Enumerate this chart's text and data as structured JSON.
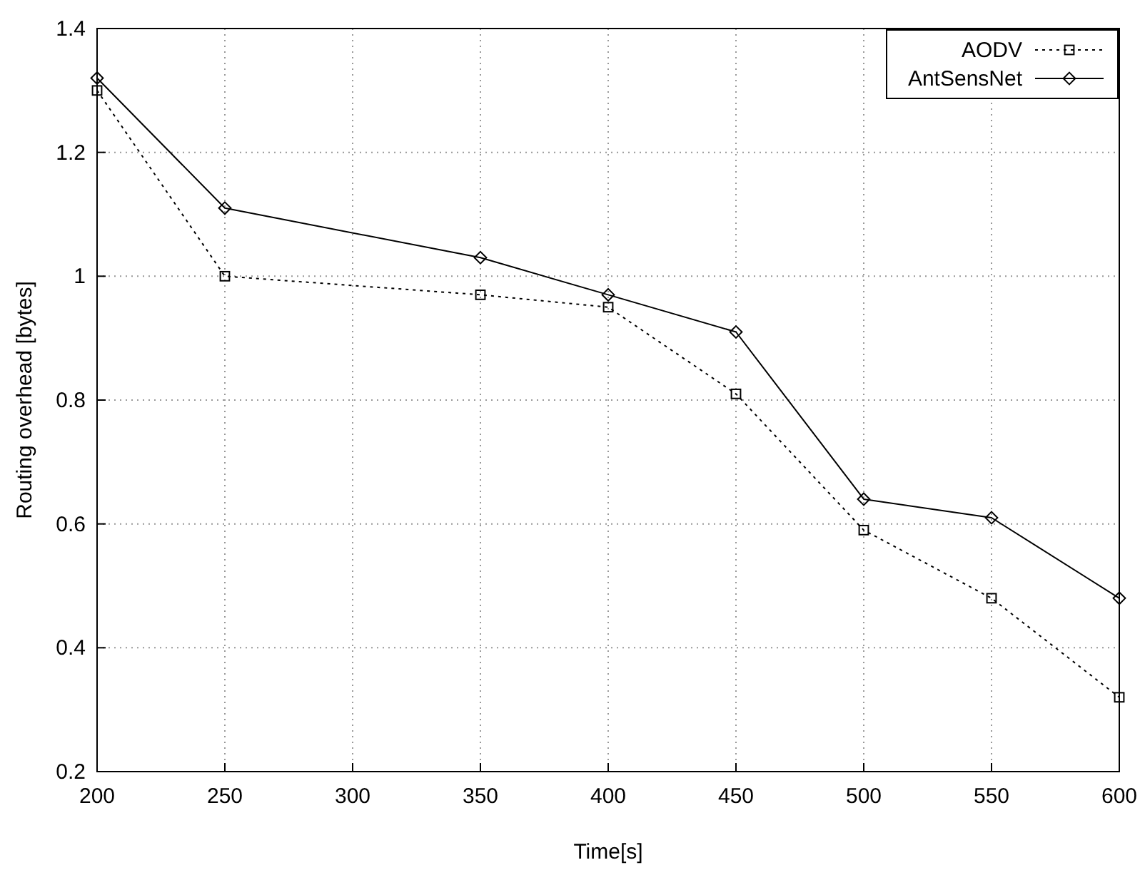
{
  "chart_data": {
    "type": "line",
    "xlabel": "Time[s]",
    "ylabel": "Routing overhead [bytes]",
    "x": [
      200,
      250,
      350,
      400,
      450,
      500,
      550,
      600
    ],
    "series": [
      {
        "name": "AODV",
        "color": "#000000",
        "line_style": "dotted",
        "marker": "square",
        "values": [
          1.3,
          1.0,
          0.97,
          0.95,
          0.81,
          0.59,
          0.48,
          0.32
        ]
      },
      {
        "name": "AntSensNet",
        "color": "#000000",
        "line_style": "solid",
        "marker": "diamond",
        "values": [
          1.32,
          1.11,
          1.03,
          0.97,
          0.91,
          0.64,
          0.61,
          0.48
        ]
      }
    ],
    "xlim": [
      200,
      600
    ],
    "xticks": [
      200,
      250,
      300,
      350,
      400,
      450,
      500,
      550,
      600
    ],
    "ylim": [
      0.2,
      1.4
    ],
    "yticks": [
      0.2,
      0.4,
      0.6,
      0.8,
      1,
      1.2,
      1.4
    ],
    "grid": true,
    "legend": "top right"
  }
}
